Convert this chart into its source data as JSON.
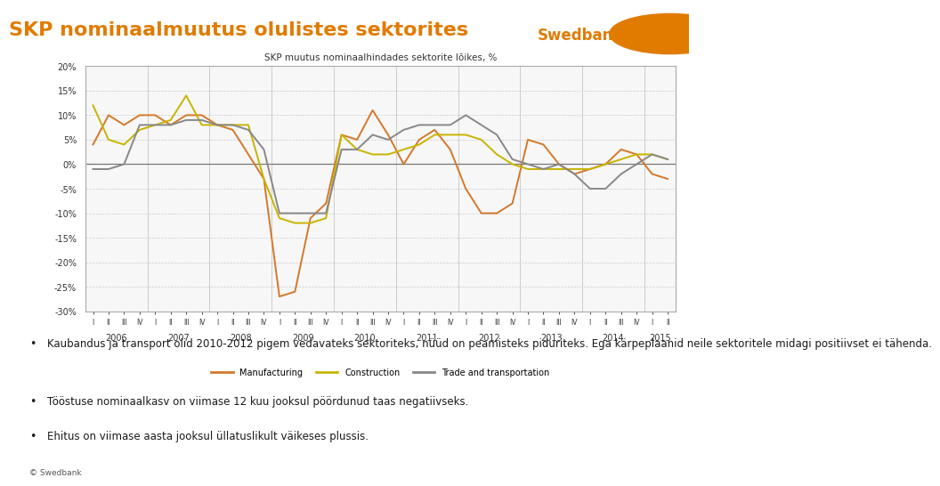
{
  "title": "SKP nominaalmuutus olulistes sektorites",
  "chart_title": "SKP muutus nominaalhindades sektorite lõikes, %",
  "background_color": "#ffffff",
  "title_color": "#e07b00",
  "title_fontsize": 16,
  "legend_labels": [
    "Manufacturing",
    "Construction",
    "Trade and transportation"
  ],
  "legend_colors": [
    "#d4782a",
    "#c8b400",
    "#888888"
  ],
  "bullet_points": [
    "Kaubandus ja transport olid 2010-2012 pigem vedavateks sektoriteks, nüüd on peamisteks piduriteks. Ega kärpeplaanid neile sektoritele midagi positiivset ei tähenda.",
    "Tööstuse nominaalkasv on viimase 12 kuu jooksul pöördunud taas negatiivseks.",
    "Ehitus on viimase aasta jooksul üllatuslikult väikeses plussis."
  ],
  "copyright_text": "© Swedbank",
  "quarters": [
    "I",
    "II",
    "III",
    "IV",
    "I",
    "II",
    "III",
    "IV",
    "I",
    "II",
    "III",
    "IV",
    "I",
    "II",
    "III",
    "IV",
    "I",
    "II",
    "III",
    "IV",
    "I",
    "II",
    "III",
    "IV",
    "I",
    "II",
    "III",
    "IV",
    "I",
    "II",
    "III",
    "IV",
    "I",
    "II",
    "III",
    "IV",
    "I",
    "II"
  ],
  "years": [
    2006,
    2006,
    2006,
    2006,
    2007,
    2007,
    2007,
    2007,
    2008,
    2008,
    2008,
    2008,
    2009,
    2009,
    2009,
    2009,
    2010,
    2010,
    2010,
    2010,
    2011,
    2011,
    2011,
    2011,
    2012,
    2012,
    2012,
    2012,
    2013,
    2013,
    2013,
    2013,
    2014,
    2014,
    2014,
    2014,
    2015,
    2015
  ],
  "manufacturing": [
    4,
    10,
    8,
    10,
    10,
    8,
    10,
    10,
    8,
    7,
    2,
    -3,
    -27,
    -26,
    -11,
    -8,
    6,
    5,
    11,
    6,
    0,
    5,
    7,
    3,
    -5,
    -10,
    -10,
    -8,
    5,
    4,
    0,
    -2,
    -1,
    0,
    3,
    2,
    -2,
    -3
  ],
  "construction": [
    12,
    5,
    4,
    7,
    8,
    9,
    14,
    8,
    8,
    8,
    8,
    -3,
    -11,
    -12,
    -12,
    -11,
    6,
    3,
    2,
    2,
    3,
    4,
    6,
    6,
    6,
    5,
    2,
    0,
    -1,
    -1,
    -1,
    -1,
    -1,
    0,
    1,
    2,
    2,
    1
  ],
  "trade_transport": [
    -1,
    -1,
    0,
    8,
    8,
    8,
    9,
    9,
    8,
    8,
    7,
    3,
    -10,
    -10,
    -10,
    -10,
    3,
    3,
    6,
    5,
    7,
    8,
    8,
    8,
    10,
    8,
    6,
    1,
    0,
    -1,
    0,
    -2,
    -5,
    -5,
    -2,
    0,
    2,
    1
  ],
  "ylim": [
    -30,
    20
  ],
  "yticks": [
    -30,
    -25,
    -20,
    -15,
    -10,
    -5,
    0,
    5,
    10,
    15,
    20
  ],
  "ytick_labels": [
    "-30%",
    "-25%",
    "-20%",
    "-15%",
    "-10%",
    "-5%",
    "0%",
    "5%",
    "10%",
    "15%",
    "20%"
  ]
}
